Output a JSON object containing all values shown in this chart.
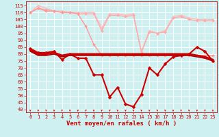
{
  "title": "Vent moyen/en rafales ( km/h )",
  "background_color": "#cff0f0",
  "grid_color": "#ffffff",
  "xlim": [
    -0.5,
    23.5
  ],
  "ylim": [
    38,
    118
  ],
  "yticks": [
    40,
    45,
    50,
    55,
    60,
    65,
    70,
    75,
    80,
    85,
    90,
    95,
    100,
    105,
    110,
    115
  ],
  "xticks": [
    0,
    1,
    2,
    3,
    4,
    5,
    6,
    7,
    8,
    9,
    10,
    11,
    12,
    13,
    14,
    15,
    16,
    17,
    18,
    19,
    20,
    21,
    22,
    23
  ],
  "series": [
    {
      "name": "rafales_max",
      "color": "#ffbbbb",
      "linewidth": 1.0,
      "marker": "^",
      "markersize": 2.5,
      "data_x": [
        0,
        1,
        2,
        3,
        4,
        5,
        6,
        7,
        8,
        9,
        10,
        11,
        12,
        13,
        14,
        15,
        16,
        17,
        18,
        19,
        20,
        21,
        22,
        23
      ],
      "data_y": [
        110,
        115,
        113,
        111,
        111,
        110,
        110,
        110,
        110,
        99,
        109,
        109,
        108,
        109,
        82,
        97,
        95,
        97,
        107,
        108,
        106,
        105,
        105,
        105
      ]
    },
    {
      "name": "rafales_high2",
      "color": "#ffaaaa",
      "linewidth": 1.0,
      "marker": "D",
      "markersize": 2.0,
      "data_x": [
        0,
        1,
        2,
        3,
        4,
        5,
        6,
        7,
        8,
        9,
        10,
        11,
        12,
        13,
        14,
        15,
        16,
        17,
        18,
        19,
        20,
        21,
        22,
        23
      ],
      "data_y": [
        110,
        113,
        112,
        111,
        110,
        110,
        109,
        109,
        109,
        97,
        108,
        108,
        107,
        108,
        81,
        96,
        95,
        96,
        106,
        107,
        105,
        104,
        104,
        104
      ]
    },
    {
      "name": "rafales_dip",
      "color": "#ff9999",
      "linewidth": 1.0,
      "marker": "D",
      "markersize": 2.0,
      "data_x": [
        0,
        1,
        2,
        3,
        4,
        5,
        6,
        7,
        8,
        9,
        10,
        11,
        12,
        13,
        14,
        15,
        16,
        17,
        18,
        19,
        20,
        21,
        22,
        23
      ],
      "data_y": [
        110,
        113,
        111,
        111,
        110,
        110,
        109,
        100,
        87,
        79,
        79,
        79,
        79,
        79,
        79,
        79,
        79,
        79,
        79,
        79,
        79,
        79,
        79,
        79
      ]
    },
    {
      "name": "vent_main",
      "color": "#cc0000",
      "linewidth": 1.5,
      "marker": "D",
      "markersize": 2.5,
      "data_x": [
        0,
        1,
        2,
        3,
        4,
        5,
        6,
        7,
        8,
        9,
        10,
        11,
        12,
        13,
        14,
        15,
        16,
        17,
        18,
        19,
        20,
        21,
        22,
        23
      ],
      "data_y": [
        84,
        81,
        81,
        82,
        76,
        80,
        77,
        77,
        65,
        65,
        49,
        56,
        44,
        42,
        51,
        70,
        65,
        73,
        78,
        79,
        80,
        85,
        82,
        75
      ]
    },
    {
      "name": "vent_flat1",
      "color": "#cc0000",
      "linewidth": 2.0,
      "marker": null,
      "markersize": 0,
      "data_x": [
        0,
        1,
        2,
        3,
        4,
        5,
        6,
        7,
        8,
        9,
        10,
        11,
        12,
        13,
        14,
        15,
        16,
        17,
        18,
        19,
        20,
        21,
        22,
        23
      ],
      "data_y": [
        83,
        80,
        80,
        81,
        79,
        80,
        80,
        80,
        80,
        80,
        80,
        80,
        80,
        80,
        80,
        80,
        80,
        80,
        80,
        80,
        80,
        79,
        78,
        76
      ]
    },
    {
      "name": "vent_flat2",
      "color": "#aa0000",
      "linewidth": 1.2,
      "marker": null,
      "markersize": 0,
      "data_x": [
        0,
        1,
        2,
        3,
        4,
        5,
        6,
        7,
        8,
        9,
        10,
        11,
        12,
        13,
        14,
        15,
        16,
        17,
        18,
        19,
        20,
        21,
        22,
        23
      ],
      "data_y": [
        82,
        79,
        79,
        80,
        78,
        79,
        79,
        79,
        79,
        79,
        79,
        79,
        79,
        79,
        79,
        79,
        79,
        79,
        79,
        79,
        79,
        78,
        77,
        75
      ]
    }
  ],
  "arrow_color": "#cc0000",
  "tick_color": "#cc0000",
  "xlabel_color": "#cc0000",
  "tick_fontsize": 5.0,
  "label_fontsize": 6.5
}
